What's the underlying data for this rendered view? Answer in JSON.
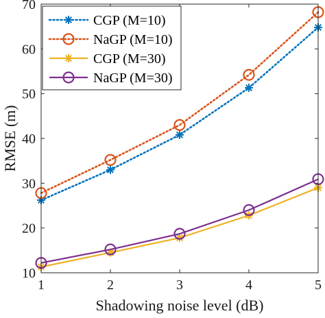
{
  "chart_data": {
    "type": "line",
    "x": [
      1,
      2,
      3,
      4,
      5
    ],
    "xlabel": "Shadowing noise level (dB)",
    "ylabel": "RMSE (m)",
    "xlim": [
      1,
      5
    ],
    "ylim": [
      10,
      70
    ],
    "xticks": [
      "1",
      "2",
      "3",
      "4",
      "5"
    ],
    "yticks": [
      "10",
      "20",
      "30",
      "40",
      "50",
      "60",
      "70"
    ],
    "legend_position": "top-left",
    "series": [
      {
        "name": "CGP (M=10)",
        "values": [
          26.2,
          33.0,
          40.8,
          51.3,
          64.8
        ],
        "color": "#0072BD",
        "line": "dotted",
        "marker": "asterisk"
      },
      {
        "name": "NaGP (M=10)",
        "values": [
          27.8,
          35.2,
          43.0,
          54.2,
          68.2
        ],
        "color": "#D95319",
        "line": "dotted",
        "marker": "circle"
      },
      {
        "name": "CGP (M=30)",
        "values": [
          11.3,
          14.5,
          17.8,
          22.8,
          29.0
        ],
        "color": "#EDB120",
        "line": "solid",
        "marker": "asterisk"
      },
      {
        "name": "NaGP (M=30)",
        "values": [
          12.2,
          15.2,
          18.7,
          24.0,
          30.9
        ],
        "color": "#7E2F8E",
        "line": "solid",
        "marker": "circle"
      }
    ]
  }
}
